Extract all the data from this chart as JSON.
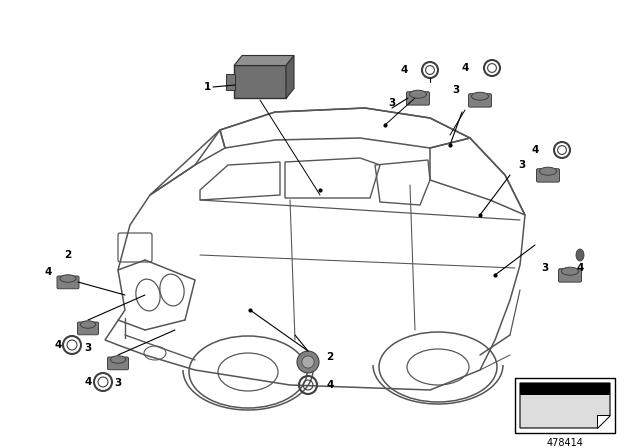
{
  "bg_color": "#ffffff",
  "part_number": "478414",
  "fig_width": 6.4,
  "fig_height": 4.48,
  "dpi": 100,
  "car_color": "#cccccc",
  "car_edge": "#555555",
  "sensor_color": "#808080",
  "sensor_edge": "#404040",
  "line_color": "#000000",
  "label_fontsize": 7.5,
  "label_bold": true,
  "ecu_color": "#707070",
  "ecu_edge": "#404040"
}
